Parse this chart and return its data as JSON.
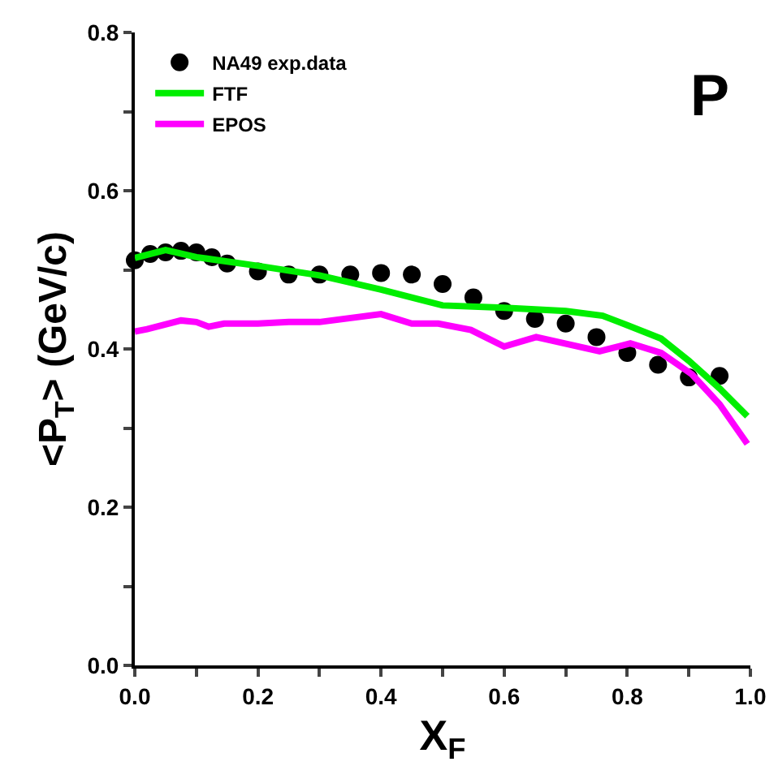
{
  "chart_data": {
    "type": "line",
    "xlabel": "X$_{F}$",
    "ylabel": "<P$_{T}$> (GeV/c)",
    "annotations": [
      "P"
    ],
    "xlim": [
      0,
      1
    ],
    "ylim": [
      0,
      0.8
    ],
    "xticks": [
      {
        "value": 0,
        "label": "0.0"
      },
      {
        "value": 0.1,
        "label": null
      },
      0.2,
      {
        "value": 0.3,
        "label": null
      },
      0.4,
      {
        "value": 0.5,
        "label": null
      },
      0.6,
      {
        "value": 0.7,
        "label": null
      },
      0.8,
      {
        "value": 0.9,
        "label": null
      },
      {
        "value": 1,
        "label": "1.0"
      }
    ],
    "yticks": [
      {
        "value": 0,
        "label": "0.0"
      },
      {
        "value": 0.1,
        "label": null
      },
      0.2,
      {
        "value": 0.3,
        "label": null
      },
      0.4,
      {
        "value": 0.5,
        "label": null
      },
      0.6,
      {
        "value": 0.7,
        "label": null
      },
      0.8
    ],
    "grid": false,
    "legend": "top left",
    "series": [
      {
        "name": "NA49 exp.data",
        "type": "scatter",
        "marker": "circle",
        "color": "#000000",
        "x": [
          0.0,
          0.025,
          0.05,
          0.075,
          0.1,
          0.125,
          0.15,
          0.2,
          0.25,
          0.3,
          0.35,
          0.4,
          0.45,
          0.5,
          0.55,
          0.6,
          0.65,
          0.7,
          0.75,
          0.8,
          0.85,
          0.9,
          0.95
        ],
        "values": [
          0.512,
          0.52,
          0.522,
          0.524,
          0.522,
          0.516,
          0.508,
          0.498,
          0.494,
          0.494,
          0.494,
          0.496,
          0.494,
          0.482,
          0.465,
          0.448,
          0.438,
          0.432,
          0.415,
          0.395,
          0.38,
          0.364,
          0.366
        ]
      },
      {
        "name": "FTF",
        "type": "line",
        "color": "#00ee00",
        "x": [
          0.0,
          0.05,
          0.1,
          0.2,
          0.3,
          0.4,
          0.5,
          0.6,
          0.7,
          0.76,
          0.8,
          0.855,
          0.9,
          0.95,
          0.995
        ],
        "values": [
          0.515,
          0.525,
          0.516,
          0.505,
          0.493,
          0.475,
          0.455,
          0.452,
          0.448,
          0.442,
          0.43,
          0.413,
          0.385,
          0.35,
          0.315
        ]
      },
      {
        "name": "EPOS",
        "type": "line",
        "color": "#ff00ff",
        "x": [
          0.0,
          0.02,
          0.075,
          0.1,
          0.12,
          0.145,
          0.2,
          0.25,
          0.3,
          0.4,
          0.45,
          0.493,
          0.546,
          0.6,
          0.652,
          0.755,
          0.805,
          0.855,
          0.905,
          0.95,
          0.995
        ],
        "values": [
          0.422,
          0.425,
          0.436,
          0.434,
          0.428,
          0.432,
          0.432,
          0.434,
          0.434,
          0.444,
          0.432,
          0.432,
          0.424,
          0.403,
          0.415,
          0.397,
          0.407,
          0.395,
          0.368,
          0.33,
          0.28
        ]
      }
    ]
  }
}
